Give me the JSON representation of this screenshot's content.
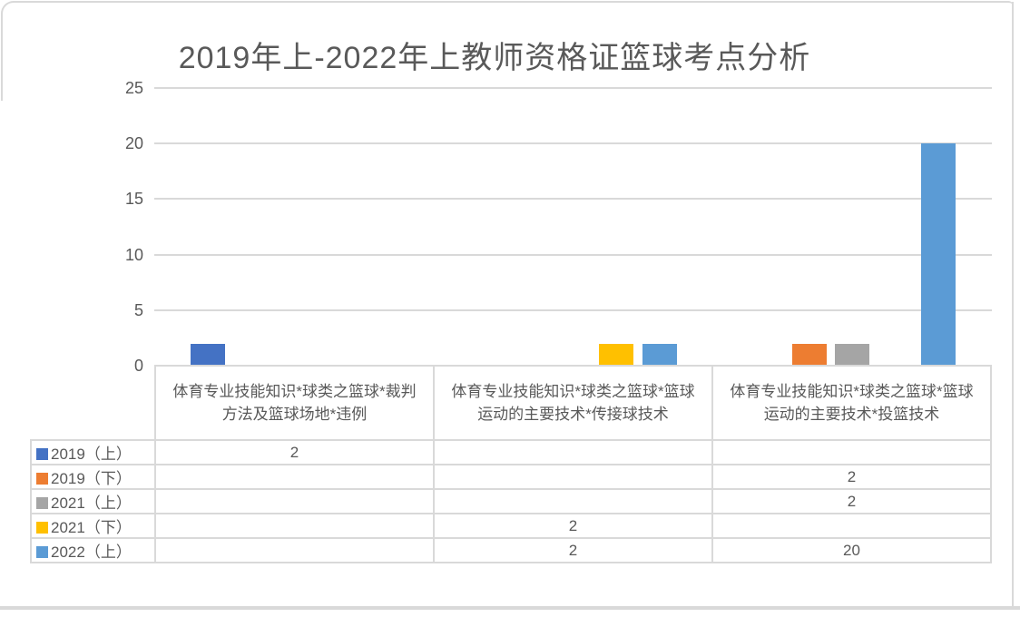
{
  "theme": {
    "text_color": "#595959",
    "grid_color": "#D9D9D9",
    "frame_color": "#D9D9D9",
    "background": "#FFFFFF"
  },
  "chart_data": {
    "type": "bar",
    "title": "2019年上-2022年上教师资格证篮球考点分析",
    "categories": [
      "体育专业技能知识*球类之篮球*裁判方法及篮球场地*违例",
      "体育专业技能知识*球类之篮球*篮球运动的主要技术*传接球技术",
      "体育专业技能知识*球类之篮球*篮球运动的主要技术*投篮技术"
    ],
    "series": [
      {
        "name": "2019（上）",
        "color": "#4472C4",
        "values": [
          2,
          null,
          null
        ]
      },
      {
        "name": "2019（下）",
        "color": "#ED7D31",
        "values": [
          null,
          null,
          2
        ]
      },
      {
        "name": "2021（上）",
        "color": "#A5A5A5",
        "values": [
          null,
          null,
          2
        ]
      },
      {
        "name": "2021（下）",
        "color": "#FFC000",
        "values": [
          null,
          2,
          null
        ]
      },
      {
        "name": "2022（上）",
        "color": "#5B9BD5",
        "values": [
          null,
          2,
          20
        ]
      }
    ],
    "y_ticks": [
      0,
      5,
      10,
      15,
      20,
      25
    ],
    "ylim": [
      0,
      25
    ],
    "xlabel": "",
    "ylabel": "",
    "grid": true,
    "legend_position": "data-table-left"
  }
}
